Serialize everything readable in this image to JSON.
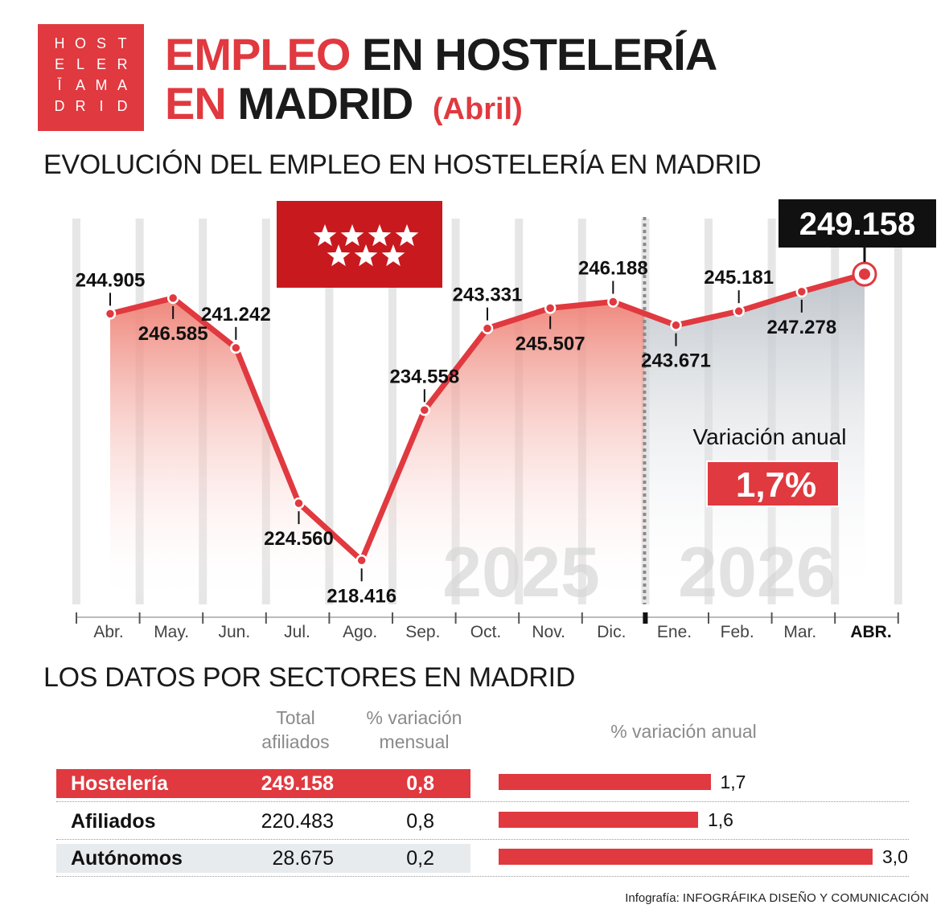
{
  "logo": {
    "letters": [
      "H",
      "O",
      "S",
      "T",
      "E",
      "L",
      "E",
      "R",
      "Ī",
      "A",
      "M",
      "A",
      "D",
      "R",
      "I",
      "D"
    ],
    "color": "#e0393f"
  },
  "title": {
    "line1_red": "EMPLEO",
    "line1_dark": "EN HOSTELERÍA",
    "line2_red": "EN",
    "line2_dark": "MADRID",
    "subtitle": "(Abril)"
  },
  "section1_title": "EVOLUCIÓN DEL EMPLEO EN HOSTELERÍA EN MADRID",
  "section2_title": "LOS DATOS POR SECTORES EN MADRID",
  "colors": {
    "accent": "#e0393f",
    "flag": "#c8191f",
    "dark": "#111111",
    "grey": "#8a8a8a"
  },
  "flag_icon": "madrid-flag-seven-stars",
  "chart_data": [
    {
      "type": "area",
      "title": "EVOLUCIÓN DEL EMPLEO EN HOSTELERÍA EN MADRID",
      "categories": [
        "Abr.",
        "May.",
        "Jun.",
        "Jul.",
        "Ago.",
        "Sep.",
        "Oct.",
        "Nov.",
        "Dic.",
        "Ene.",
        "Feb.",
        "Mar.",
        "ABR."
      ],
      "values": [
        244905,
        246585,
        241242,
        224560,
        218416,
        234558,
        243331,
        245507,
        246188,
        243671,
        245181,
        247278,
        249158
      ],
      "value_labels": [
        "244.905",
        "246.585",
        "241.242",
        "224.560",
        "218.416",
        "234.558",
        "243.331",
        "245.507",
        "246.188",
        "243.671",
        "245.181",
        "247.278",
        "249.158"
      ],
      "year_labels": [
        "2025",
        "2026"
      ],
      "highlight_value": "249.158",
      "annual_variation_label": "Variación anual",
      "annual_variation_value": "1,7%",
      "grid": true,
      "ylim": [
        208000,
        254000
      ]
    },
    {
      "type": "bar",
      "title": "LOS DATOS POR SECTORES EN MADRID",
      "columns": [
        "Total afiliados",
        "% variación mensual",
        "% variación anual"
      ],
      "rows": [
        {
          "name": "Hostelería",
          "total": "249.158",
          "mensual": "0,8",
          "anual": 1.7,
          "anual_label": "1,7"
        },
        {
          "name": "Afiliados",
          "total": "220.483",
          "mensual": "0,8",
          "anual": 1.6,
          "anual_label": "1,6"
        },
        {
          "name": "Autónomos",
          "total": "28.675",
          "mensual": "0,2",
          "anual": 3.0,
          "anual_label": "3,0"
        }
      ]
    }
  ],
  "table": {
    "col_total_1": "Total",
    "col_total_2": "afiliados",
    "col_mensual_1": "% variación",
    "col_mensual_2": "mensual",
    "col_anual": "% variación anual"
  },
  "credit_prefix": "Infografía:",
  "credit_name": "INFOGRÁFIKA DISEÑO Y COMUNICACIÓN"
}
